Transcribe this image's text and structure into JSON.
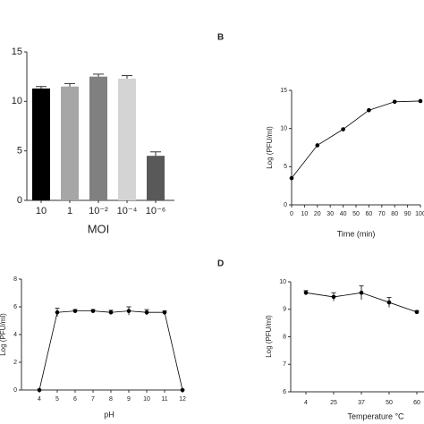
{
  "chart_data": [
    {
      "type": "bar",
      "categories": [
        "10",
        "1",
        "10⁻²",
        "10⁻⁴",
        "10⁻⁶"
      ],
      "values": [
        11.3,
        11.5,
        12.5,
        12.3,
        4.5
      ],
      "errors": [
        0.2,
        0.3,
        0.25,
        0.3,
        0.4
      ],
      "colors": [
        "#000000",
        "#a6a6a6",
        "#808080",
        "#d4d4d4",
        "#595959"
      ],
      "x_label": "MOI",
      "ylim": [
        0,
        15
      ],
      "yticks": [
        0,
        5,
        10,
        15
      ]
    },
    {
      "type": "line",
      "label": "B",
      "x": [
        0,
        20,
        40,
        60,
        80,
        100
      ],
      "values": [
        3.5,
        7.8,
        9.9,
        12.4,
        13.5,
        13.6
      ],
      "color": "#000000",
      "x_label": "Time (min)",
      "y_label": "Log (PFU/ml)",
      "xlim": [
        0,
        100
      ],
      "xticks": [
        0,
        10,
        20,
        30,
        40,
        50,
        60,
        70,
        80,
        90,
        100
      ],
      "ylim": [
        0,
        15
      ],
      "yticks": [
        0,
        5,
        10,
        15
      ]
    },
    {
      "type": "line",
      "x": [
        4,
        5,
        6,
        7,
        8,
        9,
        10,
        11,
        12
      ],
      "values": [
        0,
        5.6,
        5.7,
        5.7,
        5.6,
        5.7,
        5.6,
        5.6,
        0
      ],
      "errors": [
        0,
        0.3,
        0.1,
        0.1,
        0.15,
        0.3,
        0.2,
        0.1,
        0
      ],
      "color": "#000000",
      "x_label": "pH",
      "y_label": "Log (PFU/ml)",
      "xlim": [
        3,
        12
      ],
      "xticks": [
        4,
        5,
        6,
        7,
        8,
        9,
        10,
        11,
        12
      ],
      "ylim": [
        0,
        8
      ],
      "yticks": [
        0,
        2,
        4,
        6,
        8
      ]
    },
    {
      "type": "line",
      "label": "D",
      "categories": [
        "4",
        "25",
        "37",
        "50",
        "60"
      ],
      "values": [
        9.6,
        9.45,
        9.6,
        9.25,
        8.9
      ],
      "errors": [
        0.08,
        0.15,
        0.25,
        0.18,
        0.05
      ],
      "color": "#000000",
      "x_label": "Temperature °C",
      "y_label": "Log (PFU/ml)",
      "ylim": [
        6,
        10
      ],
      "yticks": [
        6,
        7,
        8,
        9,
        10
      ]
    }
  ]
}
